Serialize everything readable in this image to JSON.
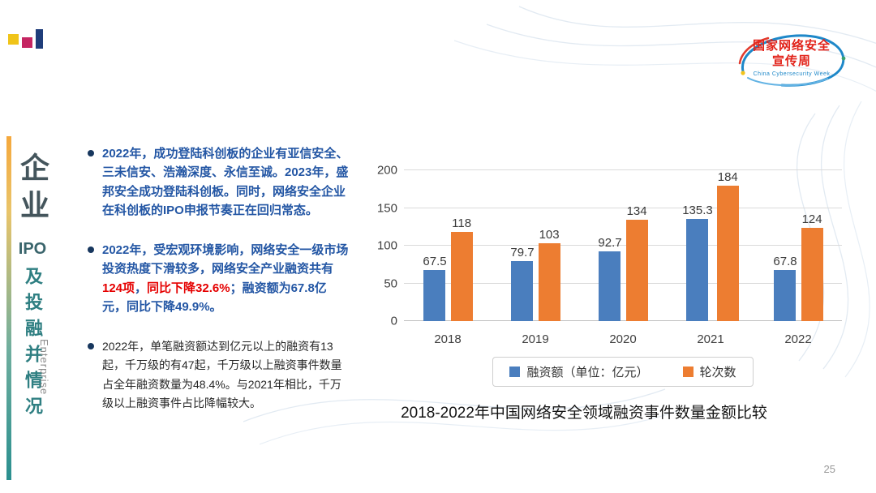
{
  "slide": {
    "page_number": "25"
  },
  "sidebar": {
    "title_main": "企业",
    "title_ipo": "IPO",
    "title_sub": "及投融并情况",
    "title_en": "Enterprise"
  },
  "logo": {
    "line1": "国家网络安全",
    "line2": "宣传周",
    "subtitle": "China Cybersecurity Week"
  },
  "bullets": [
    {
      "segments": [
        {
          "text": "2022年，成功登陆科创板的企业有亚信安全、三未信安、浩瀚深度、永信至诚。2023年，盛邦安全成功登陆科创板。同时，网络安全企业在科创板的IPO申报节奏正在回归常态。",
          "style": "blue"
        }
      ]
    },
    {
      "segments": [
        {
          "text": "2022年，受宏观环境影响，网络安全一级市场投资热度下滑较多，网络安全产业融资共有",
          "style": "blue"
        },
        {
          "text": "124项",
          "style": "red"
        },
        {
          "text": "，",
          "style": "blue"
        },
        {
          "text": "同比下降32.6%",
          "style": "red"
        },
        {
          "text": "；融资额为67.8亿元，同比下降49.9%。",
          "style": "blue"
        }
      ]
    },
    {
      "segments": [
        {
          "text": "2022年，单笔融资额达到亿元以上的融资有13起，千万级的有47起，千万级以上融资事件数量占全年融资数量为48.4%。与2021年相比，千万级以上融资事件占比降幅较大。",
          "style": "black"
        }
      ]
    }
  ],
  "chart_data": {
    "type": "bar",
    "title": "2018-2022年中国网络安全领域融资事件数量金额比较",
    "categories": [
      "2018",
      "2019",
      "2020",
      "2021",
      "2022"
    ],
    "series": [
      {
        "name": "融资额（单位：亿元）",
        "color": "#4A7EBE",
        "values": [
          67.5,
          79.7,
          92.7,
          135.3,
          67.8
        ]
      },
      {
        "name": "轮次数",
        "color": "#ED7D31",
        "values": [
          118,
          103,
          134,
          184,
          124
        ]
      }
    ],
    "ylim": [
      0,
      200
    ],
    "yticks": [
      0,
      50,
      100,
      150,
      200
    ],
    "grid": true,
    "legend_position": "bottom"
  }
}
